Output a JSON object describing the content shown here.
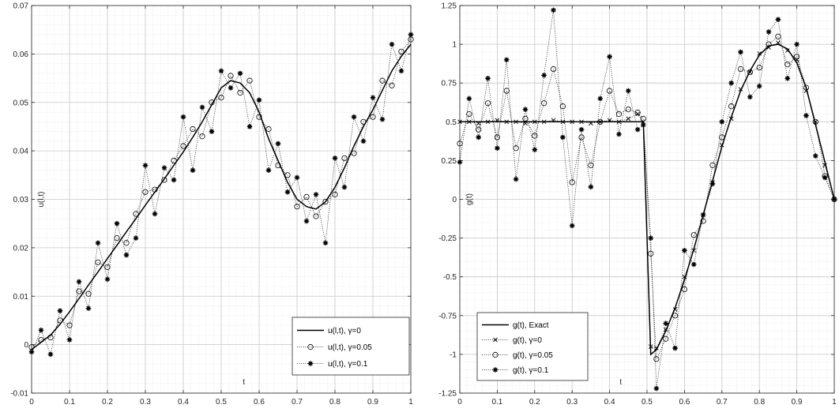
{
  "chart_data": [
    {
      "type": "line",
      "xlabel": "t",
      "ylabel": "u(l,t)",
      "xlim": [
        0,
        1
      ],
      "ylim": [
        -0.01,
        0.07
      ],
      "xticks": [
        "0",
        "0.1",
        "0.2",
        "0.3",
        "0.4",
        "0.5",
        "0.6",
        "0.7",
        "0.8",
        "0.9",
        "1"
      ],
      "yticks": [
        "-0.01",
        "0",
        "0.01",
        "0.02",
        "0.03",
        "0.04",
        "0.05",
        "0.06",
        "0.07"
      ],
      "grid": true,
      "legend_position": "bottom-right",
      "x": [
        0,
        0.025,
        0.05,
        0.075,
        0.1,
        0.125,
        0.15,
        0.175,
        0.2,
        0.225,
        0.25,
        0.275,
        0.3,
        0.325,
        0.35,
        0.375,
        0.4,
        0.425,
        0.45,
        0.475,
        0.5,
        0.525,
        0.55,
        0.575,
        0.6,
        0.625,
        0.65,
        0.675,
        0.7,
        0.725,
        0.75,
        0.775,
        0.8,
        0.825,
        0.85,
        0.875,
        0.9,
        0.925,
        0.95,
        0.975,
        1
      ],
      "series": [
        {
          "name": "u(l,t), γ=0",
          "marker": "none",
          "values": [
            -0.001,
            0.0005,
            0.002,
            0.0042,
            0.0068,
            0.0095,
            0.0123,
            0.015,
            0.0178,
            0.0205,
            0.0233,
            0.026,
            0.0288,
            0.0315,
            0.0342,
            0.037,
            0.0398,
            0.0428,
            0.046,
            0.0495,
            0.053,
            0.0545,
            0.054,
            0.052,
            0.048,
            0.0425,
            0.038,
            0.0335,
            0.03,
            0.0285,
            0.028,
            0.0295,
            0.0325,
            0.0365,
            0.041,
            0.045,
            0.0485,
            0.0525,
            0.0565,
            0.0595,
            0.062
          ]
        },
        {
          "name": "u(l,t), γ=0.05",
          "marker": "circle",
          "values": [
            -0.0005,
            0.001,
            0.0015,
            0.005,
            0.004,
            0.011,
            0.0105,
            0.017,
            0.016,
            0.022,
            0.021,
            0.027,
            0.0315,
            0.032,
            0.034,
            0.038,
            0.041,
            0.0445,
            0.043,
            0.05,
            0.051,
            0.0555,
            0.052,
            0.0545,
            0.047,
            0.0445,
            0.037,
            0.035,
            0.0285,
            0.0305,
            0.0265,
            0.0295,
            0.031,
            0.0385,
            0.0395,
            0.046,
            0.047,
            0.0545,
            0.0535,
            0.0605,
            0.063
          ]
        },
        {
          "name": "u(l,t), γ=0.1",
          "marker": "star",
          "values": [
            -0.0015,
            0.003,
            -0.002,
            0.007,
            0.001,
            0.013,
            0.0075,
            0.021,
            0.0135,
            0.025,
            0.0185,
            0.022,
            0.037,
            0.027,
            0.0365,
            0.034,
            0.047,
            0.036,
            0.049,
            0.044,
            0.0565,
            0.053,
            0.056,
            0.045,
            0.0505,
            0.036,
            0.0415,
            0.0315,
            0.0345,
            0.0255,
            0.031,
            0.021,
            0.0385,
            0.0325,
            0.047,
            0.042,
            0.051,
            0.0465,
            0.062,
            0.0565,
            0.064
          ]
        }
      ]
    },
    {
      "type": "line",
      "xlabel": "t",
      "ylabel": "g(t)",
      "xlim": [
        0,
        1
      ],
      "ylim": [
        -1.25,
        1.25
      ],
      "xticks": [
        "0",
        "0.1",
        "0.2",
        "0.3",
        "0.4",
        "0.5",
        "0.6",
        "0.7",
        "0.8",
        "0.9",
        "1"
      ],
      "yticks": [
        "-1.25",
        "-1",
        "-0.75",
        "-0.5",
        "-0.25",
        "0",
        "0.25",
        "0.5",
        "0.75",
        "1",
        "1.25"
      ],
      "grid": true,
      "legend_position": "bottom-left",
      "x": [
        0,
        0.025,
        0.05,
        0.075,
        0.1,
        0.125,
        0.15,
        0.175,
        0.2,
        0.225,
        0.25,
        0.275,
        0.3,
        0.325,
        0.35,
        0.375,
        0.4,
        0.425,
        0.45,
        0.475,
        0.49,
        0.51,
        0.525,
        0.55,
        0.575,
        0.6,
        0.625,
        0.65,
        0.675,
        0.7,
        0.725,
        0.75,
        0.775,
        0.8,
        0.825,
        0.85,
        0.875,
        0.9,
        0.925,
        0.95,
        0.975,
        1
      ],
      "series": [
        {
          "name": "g(t), Exact",
          "marker": "none",
          "values": [
            0.5,
            0.5,
            0.5,
            0.5,
            0.5,
            0.5,
            0.5,
            0.5,
            0.5,
            0.5,
            0.5,
            0.5,
            0.5,
            0.5,
            0.5,
            0.5,
            0.5,
            0.5,
            0.5,
            0.5,
            0.5,
            -1.0,
            -0.97,
            -0.85,
            -0.7,
            -0.52,
            -0.32,
            -0.1,
            0.12,
            0.34,
            0.53,
            0.7,
            0.83,
            0.93,
            0.99,
            1.0,
            0.97,
            0.88,
            0.72,
            0.48,
            0.24,
            0.0
          ]
        },
        {
          "name": "g(t), γ=0",
          "marker": "x",
          "values": [
            0.5,
            0.5,
            0.49,
            0.5,
            0.51,
            0.5,
            0.5,
            0.49,
            0.5,
            0.5,
            0.51,
            0.5,
            0.5,
            0.5,
            0.49,
            0.5,
            0.51,
            0.5,
            0.52,
            0.55,
            0.5,
            -0.95,
            -0.96,
            -0.84,
            -0.71,
            -0.5,
            -0.33,
            -0.1,
            0.11,
            0.35,
            0.52,
            0.71,
            0.82,
            0.94,
            0.98,
            1.01,
            0.96,
            0.9,
            0.7,
            0.5,
            0.22,
            0.0
          ]
        },
        {
          "name": "g(t), γ=0.05",
          "marker": "circle",
          "values": [
            0.36,
            0.55,
            0.45,
            0.62,
            0.4,
            0.7,
            0.33,
            0.52,
            0.41,
            0.62,
            0.84,
            0.6,
            0.11,
            0.4,
            0.22,
            0.5,
            0.7,
            0.55,
            0.58,
            0.56,
            0.52,
            -0.35,
            -1.03,
            -0.9,
            -0.75,
            -0.58,
            -0.23,
            -0.14,
            0.22,
            0.4,
            0.6,
            0.84,
            0.82,
            0.85,
            1.0,
            1.05,
            0.87,
            0.92,
            0.72,
            0.5,
            0.15,
            0.0
          ]
        },
        {
          "name": "g(t), γ=0.1",
          "marker": "star",
          "values": [
            0.24,
            0.65,
            0.4,
            0.78,
            0.33,
            0.9,
            0.13,
            0.58,
            0.32,
            0.8,
            1.22,
            0.4,
            -0.17,
            0.45,
            0.08,
            0.65,
            0.92,
            0.42,
            0.7,
            0.45,
            0.48,
            -0.25,
            -1.22,
            -0.8,
            -0.96,
            -0.33,
            -0.42,
            -0.1,
            0.1,
            0.5,
            0.75,
            0.95,
            0.66,
            0.73,
            1.08,
            1.16,
            0.78,
            1.0,
            0.54,
            0.28,
            0.14,
            0.0
          ]
        }
      ]
    }
  ]
}
